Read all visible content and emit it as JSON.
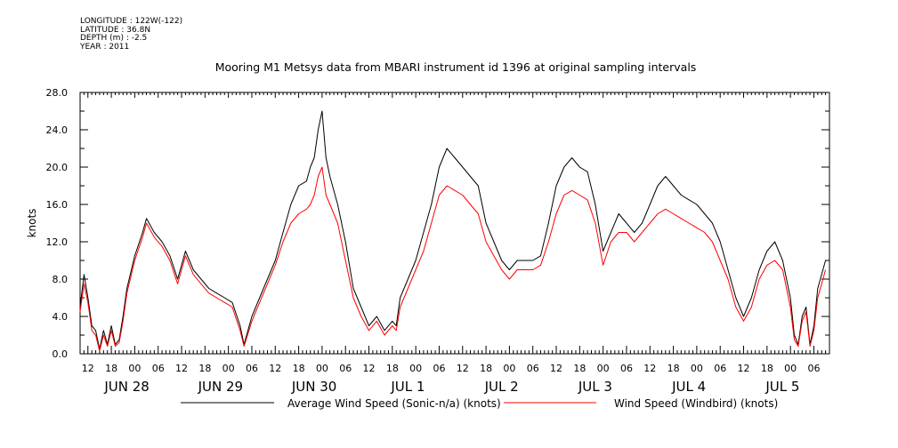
{
  "meta": {
    "longitude": "LONGITUDE : 122W(-122)",
    "latitude": "LATITUDE : 36.8N",
    "depth": "DEPTH (m) : -2.5",
    "year": "YEAR : 2011"
  },
  "chart_data": {
    "type": "line",
    "title": "Mooring M1 Metsys data from MBARI instrument id 1396 at original sampling intervals",
    "ylabel": "knots",
    "ylim": [
      0,
      28
    ],
    "y_ticks": [
      "0.0",
      "4.0",
      "8.0",
      "12.0",
      "16.0",
      "20.0",
      "24.0",
      "28.0"
    ],
    "x_range_hours": [
      -14,
      178
    ],
    "x_hour_ticks": [
      "12",
      "18",
      "00",
      "06",
      "12",
      "18",
      "00",
      "06",
      "12",
      "18",
      "00",
      "06",
      "12",
      "18",
      "00",
      "06",
      "12",
      "18",
      "00",
      "06",
      "12",
      "18",
      "00",
      "06",
      "12",
      "18",
      "00",
      "06",
      "12",
      "18",
      "00",
      "06"
    ],
    "x_day_labels": [
      "JUN 28",
      "JUN 29",
      "JUN 30",
      "JUL  1",
      "JUL  2",
      "JUL  3",
      "JUL  4",
      "JUL  5"
    ],
    "x_units": "hours since JUN 28 00:00",
    "grid": false,
    "legend_position": "bottom",
    "series": [
      {
        "name": "Average Wind Speed (Sonic-n/a) (knots)",
        "color": "#000000",
        "points": [
          [
            -14,
            5
          ],
          [
            -13,
            8.5
          ],
          [
            -12,
            6
          ],
          [
            -11,
            3
          ],
          [
            -10,
            2.5
          ],
          [
            -9,
            0.5
          ],
          [
            -8,
            2.5
          ],
          [
            -7,
            1
          ],
          [
            -6,
            3
          ],
          [
            -5,
            1
          ],
          [
            -4,
            1.5
          ],
          [
            -3,
            4
          ],
          [
            -2,
            7
          ],
          [
            0,
            10.5
          ],
          [
            2,
            13
          ],
          [
            3,
            14.5
          ],
          [
            5,
            13
          ],
          [
            7,
            12
          ],
          [
            9,
            10.5
          ],
          [
            11,
            8
          ],
          [
            13,
            11
          ],
          [
            15,
            9
          ],
          [
            17,
            8
          ],
          [
            19,
            7
          ],
          [
            21,
            6.5
          ],
          [
            23,
            6
          ],
          [
            25,
            5.5
          ],
          [
            27,
            3
          ],
          [
            28,
            1
          ],
          [
            30,
            4
          ],
          [
            32,
            6
          ],
          [
            34,
            8
          ],
          [
            36,
            10
          ],
          [
            38,
            13
          ],
          [
            40,
            16
          ],
          [
            42,
            18
          ],
          [
            44,
            18.5
          ],
          [
            45,
            20
          ],
          [
            46,
            21
          ],
          [
            47,
            24
          ],
          [
            48,
            26
          ],
          [
            49,
            21
          ],
          [
            50,
            19
          ],
          [
            52,
            16
          ],
          [
            54,
            12
          ],
          [
            56,
            7
          ],
          [
            58,
            5
          ],
          [
            60,
            3
          ],
          [
            62,
            4
          ],
          [
            64,
            2.5
          ],
          [
            66,
            3.5
          ],
          [
            67,
            3
          ],
          [
            68,
            6
          ],
          [
            70,
            8
          ],
          [
            72,
            10
          ],
          [
            74,
            13
          ],
          [
            76,
            16
          ],
          [
            78,
            20
          ],
          [
            80,
            22
          ],
          [
            82,
            21
          ],
          [
            84,
            20
          ],
          [
            86,
            19
          ],
          [
            88,
            18
          ],
          [
            90,
            14
          ],
          [
            92,
            12
          ],
          [
            94,
            10
          ],
          [
            96,
            9
          ],
          [
            98,
            10
          ],
          [
            100,
            10
          ],
          [
            102,
            10
          ],
          [
            104,
            10.5
          ],
          [
            106,
            14
          ],
          [
            108,
            18
          ],
          [
            110,
            20
          ],
          [
            112,
            21
          ],
          [
            114,
            20
          ],
          [
            116,
            19.5
          ],
          [
            118,
            16
          ],
          [
            120,
            11
          ],
          [
            122,
            13
          ],
          [
            124,
            15
          ],
          [
            126,
            14
          ],
          [
            128,
            13
          ],
          [
            130,
            14
          ],
          [
            132,
            16
          ],
          [
            134,
            18
          ],
          [
            136,
            19
          ],
          [
            138,
            18
          ],
          [
            140,
            17
          ],
          [
            142,
            16.5
          ],
          [
            144,
            16
          ],
          [
            146,
            15
          ],
          [
            148,
            14
          ],
          [
            150,
            12
          ],
          [
            152,
            9
          ],
          [
            154,
            6
          ],
          [
            156,
            4
          ],
          [
            158,
            6
          ],
          [
            160,
            9
          ],
          [
            162,
            11
          ],
          [
            164,
            12
          ],
          [
            166,
            10
          ],
          [
            168,
            6
          ],
          [
            169,
            2
          ],
          [
            170,
            1
          ],
          [
            171,
            4
          ],
          [
            172,
            5
          ],
          [
            173,
            1
          ],
          [
            174,
            3
          ],
          [
            175,
            7
          ],
          [
            177,
            10
          ]
        ]
      },
      {
        "name": "Wind Speed (Windbird) (knots)",
        "color": "#ff0000",
        "points": [
          [
            -14,
            4.5
          ],
          [
            -13,
            7.5
          ],
          [
            -12,
            5.5
          ],
          [
            -11,
            2.5
          ],
          [
            -10,
            2
          ],
          [
            -9,
            0.3
          ],
          [
            -8,
            2
          ],
          [
            -7,
            0.8
          ],
          [
            -6,
            2.5
          ],
          [
            -5,
            0.8
          ],
          [
            -4,
            1.2
          ],
          [
            -3,
            3.5
          ],
          [
            -2,
            6.5
          ],
          [
            0,
            10
          ],
          [
            2,
            12.5
          ],
          [
            3,
            14
          ],
          [
            5,
            12.5
          ],
          [
            7,
            11.5
          ],
          [
            9,
            10
          ],
          [
            11,
            7.5
          ],
          [
            13,
            10.5
          ],
          [
            15,
            8.5
          ],
          [
            17,
            7.5
          ],
          [
            19,
            6.5
          ],
          [
            21,
            6
          ],
          [
            23,
            5.5
          ],
          [
            25,
            5
          ],
          [
            27,
            2.5
          ],
          [
            28,
            0.8
          ],
          [
            30,
            3.5
          ],
          [
            32,
            5.5
          ],
          [
            34,
            7.5
          ],
          [
            36,
            9.5
          ],
          [
            38,
            12
          ],
          [
            40,
            14
          ],
          [
            42,
            15
          ],
          [
            44,
            15.5
          ],
          [
            45,
            16
          ],
          [
            46,
            17
          ],
          [
            47,
            19
          ],
          [
            48,
            20
          ],
          [
            49,
            17
          ],
          [
            50,
            16
          ],
          [
            52,
            14
          ],
          [
            54,
            10
          ],
          [
            56,
            6
          ],
          [
            58,
            4
          ],
          [
            60,
            2.5
          ],
          [
            62,
            3.5
          ],
          [
            64,
            2
          ],
          [
            66,
            3
          ],
          [
            67,
            2.5
          ],
          [
            68,
            5
          ],
          [
            70,
            7
          ],
          [
            72,
            9
          ],
          [
            74,
            11
          ],
          [
            76,
            14
          ],
          [
            78,
            17
          ],
          [
            80,
            18
          ],
          [
            82,
            17.5
          ],
          [
            84,
            17
          ],
          [
            86,
            16
          ],
          [
            88,
            15
          ],
          [
            90,
            12
          ],
          [
            92,
            10.5
          ],
          [
            94,
            9
          ],
          [
            96,
            8
          ],
          [
            98,
            9
          ],
          [
            100,
            9
          ],
          [
            102,
            9
          ],
          [
            104,
            9.5
          ],
          [
            106,
            12
          ],
          [
            108,
            15
          ],
          [
            110,
            17
          ],
          [
            112,
            17.5
          ],
          [
            114,
            17
          ],
          [
            116,
            16.5
          ],
          [
            118,
            14
          ],
          [
            120,
            9.5
          ],
          [
            122,
            12
          ],
          [
            124,
            13
          ],
          [
            126,
            13
          ],
          [
            128,
            12
          ],
          [
            130,
            13
          ],
          [
            132,
            14
          ],
          [
            134,
            15
          ],
          [
            136,
            15.5
          ],
          [
            138,
            15
          ],
          [
            140,
            14.5
          ],
          [
            142,
            14
          ],
          [
            144,
            13.5
          ],
          [
            146,
            13
          ],
          [
            148,
            12
          ],
          [
            150,
            10
          ],
          [
            152,
            8
          ],
          [
            154,
            5
          ],
          [
            156,
            3.5
          ],
          [
            158,
            5
          ],
          [
            160,
            8
          ],
          [
            162,
            9.5
          ],
          [
            164,
            10
          ],
          [
            166,
            9
          ],
          [
            168,
            5
          ],
          [
            169,
            1.5
          ],
          [
            170,
            0.8
          ],
          [
            171,
            3.5
          ],
          [
            172,
            4.5
          ],
          [
            173,
            0.8
          ],
          [
            174,
            2.5
          ],
          [
            175,
            6
          ],
          [
            177,
            9
          ]
        ]
      }
    ]
  }
}
